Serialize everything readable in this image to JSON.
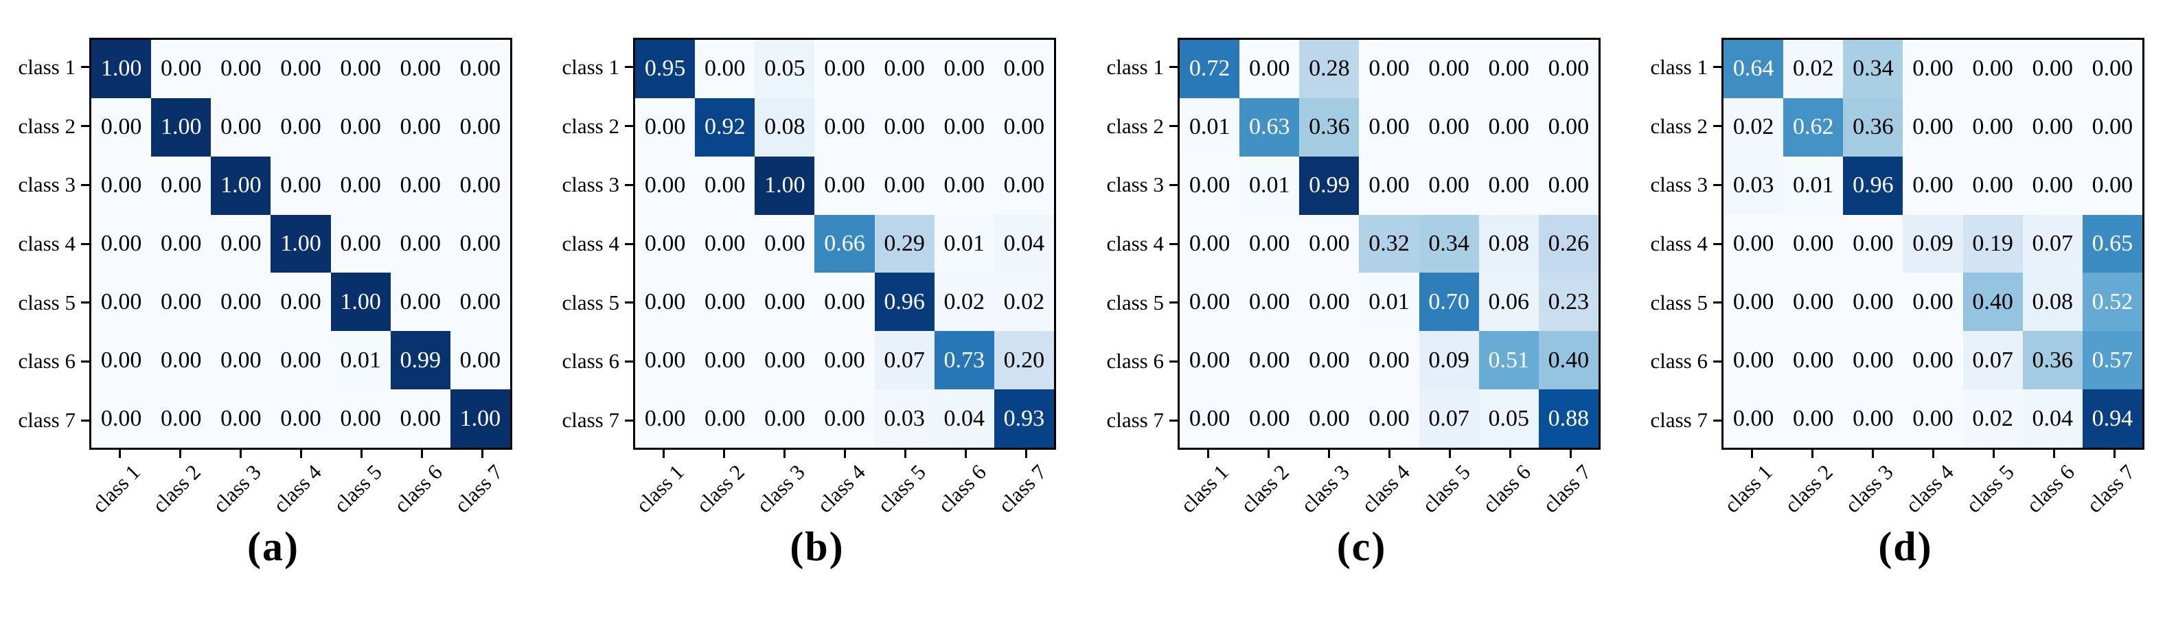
{
  "figure": {
    "description": "Four normalized 7x7 confusion matrices",
    "background_color": "#ffffff",
    "axis_color": "#000000",
    "colormap_name": "Blues",
    "colormap_stops": [
      "#f7fbff",
      "#deebf7",
      "#c6dbef",
      "#9ecae1",
      "#6baed6",
      "#4292c6",
      "#2171b5",
      "#08519c",
      "#08306b"
    ],
    "cell_text_color_dark_bg": "#ffffff",
    "cell_text_color_light_bg": "#000000",
    "value_decimals": 2
  },
  "chart_data": [
    {
      "type": "heatmap",
      "caption": "(a)",
      "row_labels": [
        "class 1",
        "class 2",
        "class 3",
        "class 4",
        "class 5",
        "class 6",
        "class 7"
      ],
      "col_labels": [
        "class 1",
        "class 2",
        "class 3",
        "class 4",
        "class 5",
        "class 6",
        "class 7"
      ],
      "value_range": [
        0,
        1
      ],
      "values": [
        [
          1.0,
          0.0,
          0.0,
          0.0,
          0.0,
          0.0,
          0.0
        ],
        [
          0.0,
          1.0,
          0.0,
          0.0,
          0.0,
          0.0,
          0.0
        ],
        [
          0.0,
          0.0,
          1.0,
          0.0,
          0.0,
          0.0,
          0.0
        ],
        [
          0.0,
          0.0,
          0.0,
          1.0,
          0.0,
          0.0,
          0.0
        ],
        [
          0.0,
          0.0,
          0.0,
          0.0,
          1.0,
          0.0,
          0.0
        ],
        [
          0.0,
          0.0,
          0.0,
          0.0,
          0.01,
          0.99,
          0.0
        ],
        [
          0.0,
          0.0,
          0.0,
          0.0,
          0.0,
          0.0,
          1.0
        ]
      ]
    },
    {
      "type": "heatmap",
      "caption": "(b)",
      "row_labels": [
        "class 1",
        "class 2",
        "class 3",
        "class 4",
        "class 5",
        "class 6",
        "class 7"
      ],
      "col_labels": [
        "class 1",
        "class 2",
        "class 3",
        "class 4",
        "class 5",
        "class 6",
        "class 7"
      ],
      "value_range": [
        0,
        1
      ],
      "values": [
        [
          0.95,
          0.0,
          0.05,
          0.0,
          0.0,
          0.0,
          0.0
        ],
        [
          0.0,
          0.92,
          0.08,
          0.0,
          0.0,
          0.0,
          0.0
        ],
        [
          0.0,
          0.0,
          1.0,
          0.0,
          0.0,
          0.0,
          0.0
        ],
        [
          0.0,
          0.0,
          0.0,
          0.66,
          0.29,
          0.01,
          0.04
        ],
        [
          0.0,
          0.0,
          0.0,
          0.0,
          0.96,
          0.02,
          0.02
        ],
        [
          0.0,
          0.0,
          0.0,
          0.0,
          0.07,
          0.73,
          0.2
        ],
        [
          0.0,
          0.0,
          0.0,
          0.0,
          0.03,
          0.04,
          0.93
        ]
      ]
    },
    {
      "type": "heatmap",
      "caption": "(c)",
      "row_labels": [
        "class 1",
        "class 2",
        "class 3",
        "class 4",
        "class 5",
        "class 6",
        "class 7"
      ],
      "col_labels": [
        "class 1",
        "class 2",
        "class 3",
        "class 4",
        "class 5",
        "class 6",
        "class 7"
      ],
      "value_range": [
        0,
        1
      ],
      "values": [
        [
          0.72,
          0.0,
          0.28,
          0.0,
          0.0,
          0.0,
          0.0
        ],
        [
          0.01,
          0.63,
          0.36,
          0.0,
          0.0,
          0.0,
          0.0
        ],
        [
          0.0,
          0.01,
          0.99,
          0.0,
          0.0,
          0.0,
          0.0
        ],
        [
          0.0,
          0.0,
          0.0,
          0.32,
          0.34,
          0.08,
          0.26
        ],
        [
          0.0,
          0.0,
          0.0,
          0.01,
          0.7,
          0.06,
          0.23
        ],
        [
          0.0,
          0.0,
          0.0,
          0.0,
          0.09,
          0.51,
          0.4
        ],
        [
          0.0,
          0.0,
          0.0,
          0.0,
          0.07,
          0.05,
          0.88
        ]
      ]
    },
    {
      "type": "heatmap",
      "caption": "(d)",
      "row_labels": [
        "class 1",
        "class 2",
        "class 3",
        "class 4",
        "class 5",
        "class 6",
        "class 7"
      ],
      "col_labels": [
        "class 1",
        "class 2",
        "class 3",
        "class 4",
        "class 5",
        "class 6",
        "class 7"
      ],
      "value_range": [
        0,
        1
      ],
      "values": [
        [
          0.64,
          0.02,
          0.34,
          0.0,
          0.0,
          0.0,
          0.0
        ],
        [
          0.02,
          0.62,
          0.36,
          0.0,
          0.0,
          0.0,
          0.0
        ],
        [
          0.03,
          0.01,
          0.96,
          0.0,
          0.0,
          0.0,
          0.0
        ],
        [
          0.0,
          0.0,
          0.0,
          0.09,
          0.19,
          0.07,
          0.65
        ],
        [
          0.0,
          0.0,
          0.0,
          0.0,
          0.4,
          0.08,
          0.52
        ],
        [
          0.0,
          0.0,
          0.0,
          0.0,
          0.07,
          0.36,
          0.57
        ],
        [
          0.0,
          0.0,
          0.0,
          0.0,
          0.02,
          0.04,
          0.94
        ]
      ]
    }
  ]
}
